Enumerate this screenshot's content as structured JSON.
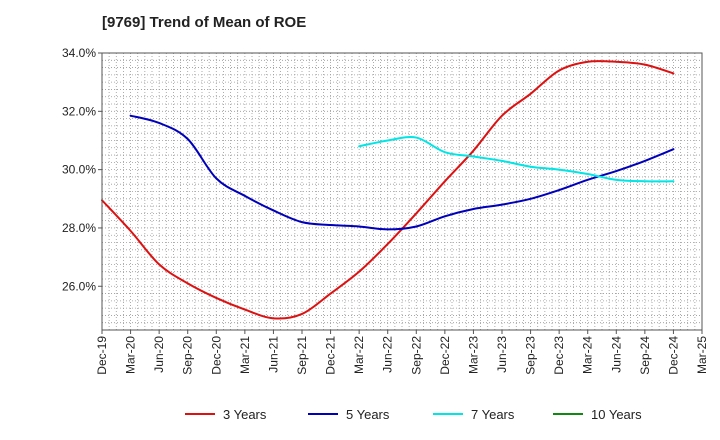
{
  "chart_data": {
    "type": "line",
    "title": "[9769]  Trend of Mean of ROE",
    "xlabel": "",
    "ylabel": "",
    "categories": [
      "Dec-19",
      "Mar-20",
      "Jun-20",
      "Sep-20",
      "Dec-20",
      "Mar-21",
      "Jun-21",
      "Sep-21",
      "Dec-21",
      "Mar-22",
      "Jun-22",
      "Sep-22",
      "Dec-22",
      "Mar-23",
      "Jun-23",
      "Sep-23",
      "Dec-23",
      "Mar-24",
      "Jun-24",
      "Sep-24",
      "Dec-24",
      "Mar-25"
    ],
    "ylim": [
      24.5,
      34.0
    ],
    "yticks": [
      26.0,
      28.0,
      30.0,
      32.0,
      34.0
    ],
    "ytick_labels": [
      "26.0%",
      "28.0%",
      "30.0%",
      "32.0%",
      "34.0%"
    ],
    "grid": true,
    "legend_position": "bottom",
    "series": [
      {
        "name": "3 Years",
        "color": "#dd1111",
        "values": [
          28.95,
          27.9,
          26.75,
          26.1,
          25.6,
          25.2,
          24.9,
          25.05,
          25.75,
          26.5,
          27.45,
          28.5,
          29.6,
          30.65,
          31.85,
          32.6,
          33.4,
          33.7,
          33.7,
          33.6,
          33.3,
          null
        ]
      },
      {
        "name": "5 Years",
        "color": "#0000bb",
        "values": [
          null,
          31.85,
          31.6,
          31.05,
          29.7,
          29.1,
          28.6,
          28.2,
          28.1,
          28.05,
          27.95,
          28.05,
          28.4,
          28.65,
          28.8,
          29.0,
          29.3,
          29.65,
          29.95,
          30.3,
          30.7,
          null
        ]
      },
      {
        "name": "7 Years",
        "color": "#00e5e5",
        "values": [
          null,
          null,
          null,
          null,
          null,
          null,
          null,
          null,
          null,
          30.8,
          31.0,
          31.1,
          30.6,
          30.45,
          30.3,
          30.1,
          30.0,
          29.85,
          29.65,
          29.6,
          29.6,
          null
        ]
      },
      {
        "name": "10 Years",
        "color": "#118811",
        "values": [
          null,
          null,
          null,
          null,
          null,
          null,
          null,
          null,
          null,
          null,
          null,
          null,
          null,
          null,
          null,
          null,
          null,
          null,
          null,
          null,
          null,
          null
        ]
      }
    ]
  }
}
